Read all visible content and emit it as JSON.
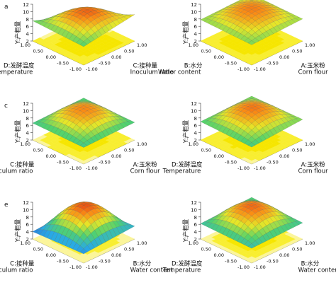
{
  "figure": {
    "panel_letters": [
      "a",
      "c",
      "e"
    ]
  },
  "chart_data": [
    {
      "type": "surface3d",
      "zlabel": "Y:产粗量",
      "z_ticks": [
        "2",
        "4",
        "6",
        "8",
        "10",
        "12"
      ],
      "x_axis": {
        "label_cn": "C:接种量",
        "label_en": "Inoculum ratio",
        "ticks": [
          "-1.00",
          "-0.50",
          "0.00",
          "0.50",
          "1.00"
        ]
      },
      "y_axis": {
        "label_cn": "D:发酵温度",
        "label_en": "Temperature",
        "ticks": [
          "-1.00",
          "-0.50",
          "0.00",
          "0.50",
          "1.00"
        ]
      },
      "z_range": [
        2,
        12
      ],
      "peak_value": 10.8,
      "corner_values": [
        7.0,
        9.2,
        7.5,
        2.3
      ]
    },
    {
      "type": "surface3d",
      "zlabel": "Y:产粗量",
      "z_ticks": [
        "2",
        "4",
        "6",
        "8",
        "10",
        "12"
      ],
      "x_axis": {
        "label_cn": "A:玉米粉",
        "label_en": "Corn flour",
        "ticks": [
          "-1.00",
          "-0.50",
          "0.00",
          "0.50",
          "1.00"
        ]
      },
      "y_axis": {
        "label_cn": "B:水分",
        "label_en": "Water content",
        "ticks": [
          "-1.00",
          "-0.50",
          "0.00",
          "0.50",
          "1.00"
        ]
      },
      "z_range": [
        2,
        12
      ],
      "peak_value": 10.6,
      "corner_values": [
        7.5,
        8.0,
        7.8,
        8.2
      ]
    },
    {
      "type": "surface3d",
      "zlabel": "Y:产粗量",
      "z_ticks": [
        "2",
        "4",
        "6",
        "8",
        "10",
        "12"
      ],
      "x_axis": {
        "label_cn": "A:玉米粉",
        "label_en": "Corn flour",
        "ticks": [
          "-1.00",
          "-0.50",
          "0.00",
          "0.50",
          "1.00"
        ]
      },
      "y_axis": {
        "label_cn": "C:接种量",
        "label_en": "Inoculum ratio",
        "ticks": [
          "-1.00",
          "-0.50",
          "0.00",
          "0.50",
          "1.00"
        ]
      },
      "z_range": [
        2,
        12
      ],
      "peak_value": 10.5,
      "corner_values": [
        6.5,
        6.8,
        6.6,
        6.9
      ]
    },
    {
      "type": "surface3d",
      "zlabel": "Y:产粗量",
      "z_ticks": [
        "2",
        "4",
        "6",
        "8",
        "10",
        "12"
      ],
      "x_axis": {
        "label_cn": "A:玉米粉",
        "label_en": "Corn flour",
        "ticks": [
          "-1.00",
          "-0.50",
          "0.00",
          "0.50",
          "1.00"
        ]
      },
      "y_axis": {
        "label_cn": "D:发酵温度",
        "label_en": "Temperature",
        "ticks": [
          "-1.00",
          "-0.50",
          "0.00",
          "0.50",
          "1.00"
        ]
      },
      "z_range": [
        2,
        12
      ],
      "peak_value": 10.7,
      "corner_values": [
        6.6,
        7.6,
        7.0,
        7.4
      ]
    },
    {
      "type": "surface3d",
      "zlabel": "Y:产粗量",
      "z_ticks": [
        "2",
        "4",
        "6",
        "8",
        "10",
        "12"
      ],
      "x_axis": {
        "label_cn": "B:水分",
        "label_en": "Water content",
        "ticks": [
          "-1.00",
          "-0.50",
          "0.00",
          "0.50",
          "1.00"
        ]
      },
      "y_axis": {
        "label_cn": "C:接种量",
        "label_en": "Inoculum ratio",
        "ticks": [
          "-1.00",
          "-0.50",
          "0.00",
          "0.50",
          "1.00"
        ]
      },
      "z_range": [
        2,
        12
      ],
      "peak_value": 11.2,
      "corner_values": [
        4.5,
        5.5,
        4.0,
        5.0
      ]
    },
    {
      "type": "surface3d",
      "zlabel": "Y:产粗量",
      "z_ticks": [
        "2",
        "4",
        "6",
        "8",
        "10",
        "12"
      ],
      "x_axis": {
        "label_cn": "B:水分",
        "label_en": "Water content",
        "ticks": [
          "-1.00",
          "-0.50",
          "0.00",
          "0.50",
          "1.00"
        ]
      },
      "y_axis": {
        "label_cn": "D:发酵温度",
        "label_en": "Temperature",
        "ticks": [
          "-1.00",
          "-0.50",
          "0.00",
          "0.50",
          "1.00"
        ]
      },
      "z_range": [
        2,
        12
      ],
      "peak_value": 10.9,
      "corner_values": [
        6.0,
        6.4,
        6.2,
        6.8
      ]
    }
  ]
}
